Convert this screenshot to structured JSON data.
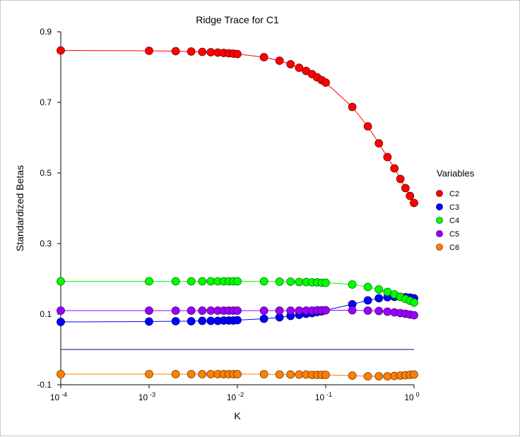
{
  "chart_data": {
    "type": "line",
    "title": "Ridge Trace for C1",
    "xlabel": "K",
    "ylabel": "Standardized Betas",
    "xscale": "log",
    "xlim": [
      0.0001,
      1
    ],
    "ylim": [
      -0.1,
      0.9
    ],
    "x_ticks": [
      {
        "base": "10",
        "exp": "-4"
      },
      {
        "base": "10",
        "exp": "-3"
      },
      {
        "base": "10",
        "exp": "-2"
      },
      {
        "base": "10",
        "exp": "-1"
      },
      {
        "base": "10",
        "exp": "0"
      }
    ],
    "y_ticks": [
      "-0.1",
      "0.1",
      "0.3",
      "0.5",
      "0.7",
      "0.9"
    ],
    "reference_line": 0,
    "legend": {
      "title": "Variables",
      "position": "right"
    },
    "x": [
      0.0001,
      0.001,
      0.002,
      0.003,
      0.004,
      0.005,
      0.006,
      0.007,
      0.008,
      0.009,
      0.01,
      0.02,
      0.03,
      0.04,
      0.05,
      0.06,
      0.07,
      0.08,
      0.09,
      0.1,
      0.2,
      0.3,
      0.4,
      0.5,
      0.6,
      0.7,
      0.8,
      0.9,
      1.0
    ],
    "series": [
      {
        "name": "C2",
        "color": "#ff0000",
        "values": [
          0.847,
          0.846,
          0.845,
          0.844,
          0.843,
          0.842,
          0.841,
          0.84,
          0.839,
          0.838,
          0.837,
          0.828,
          0.818,
          0.808,
          0.798,
          0.789,
          0.78,
          0.771,
          0.763,
          0.756,
          0.687,
          0.632,
          0.584,
          0.545,
          0.513,
          0.483,
          0.457,
          0.435,
          0.415
        ]
      },
      {
        "name": "C3",
        "color": "#0000ff",
        "values": [
          0.078,
          0.079,
          0.08,
          0.08,
          0.081,
          0.081,
          0.081,
          0.082,
          0.082,
          0.082,
          0.083,
          0.087,
          0.091,
          0.095,
          0.098,
          0.101,
          0.103,
          0.106,
          0.108,
          0.111,
          0.128,
          0.139,
          0.145,
          0.148,
          0.149,
          0.149,
          0.148,
          0.147,
          0.145
        ]
      },
      {
        "name": "C4",
        "color": "#00ff00",
        "values": [
          0.193,
          0.193,
          0.193,
          0.193,
          0.193,
          0.193,
          0.193,
          0.193,
          0.193,
          0.193,
          0.193,
          0.193,
          0.192,
          0.192,
          0.191,
          0.191,
          0.19,
          0.19,
          0.189,
          0.189,
          0.184,
          0.177,
          0.17,
          0.163,
          0.156,
          0.149,
          0.143,
          0.138,
          0.133
        ]
      },
      {
        "name": "C5",
        "color": "#9900ff",
        "values": [
          0.11,
          0.11,
          0.11,
          0.11,
          0.11,
          0.11,
          0.11,
          0.11,
          0.11,
          0.11,
          0.11,
          0.11,
          0.11,
          0.11,
          0.11,
          0.11,
          0.11,
          0.111,
          0.111,
          0.111,
          0.111,
          0.11,
          0.109,
          0.107,
          0.105,
          0.103,
          0.101,
          0.099,
          0.097
        ]
      },
      {
        "name": "C6",
        "color": "#ff8000",
        "values": [
          -0.07,
          -0.07,
          -0.07,
          -0.07,
          -0.07,
          -0.07,
          -0.07,
          -0.07,
          -0.07,
          -0.07,
          -0.07,
          -0.07,
          -0.071,
          -0.071,
          -0.071,
          -0.071,
          -0.072,
          -0.072,
          -0.072,
          -0.072,
          -0.074,
          -0.076,
          -0.076,
          -0.076,
          -0.075,
          -0.074,
          -0.073,
          -0.072,
          -0.071
        ]
      }
    ]
  }
}
